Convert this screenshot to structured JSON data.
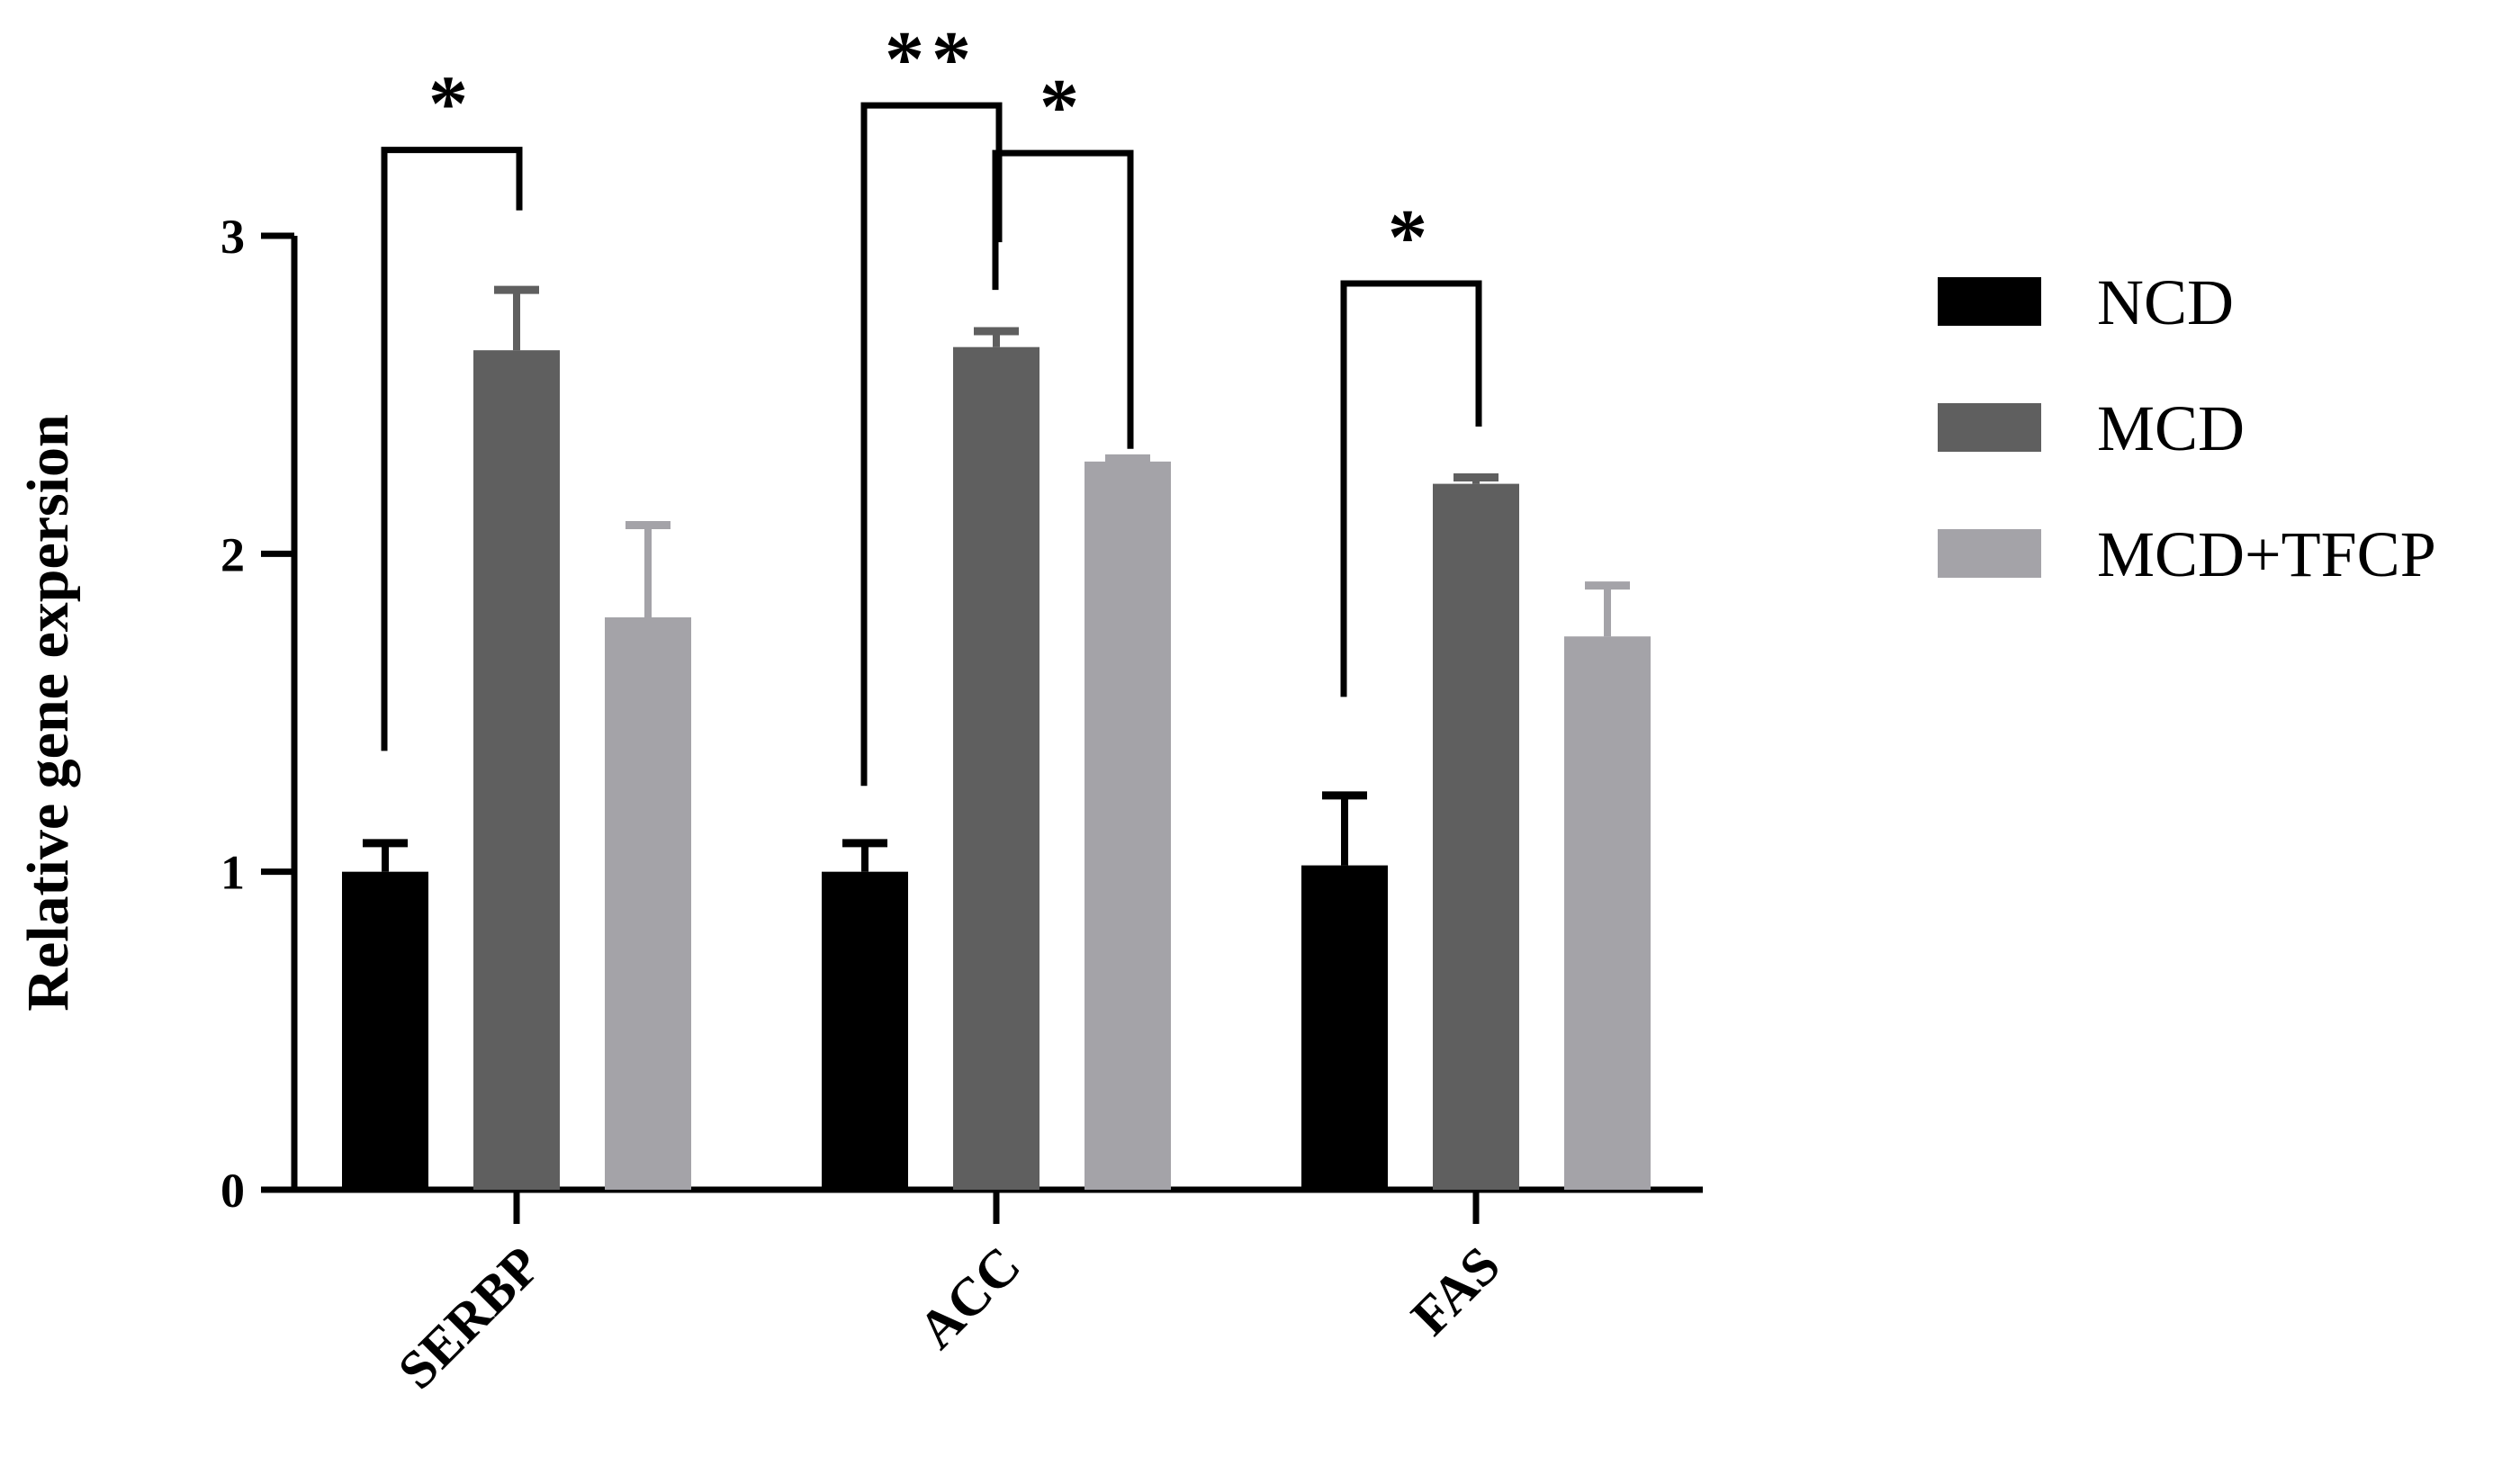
{
  "chart_data": {
    "type": "bar",
    "categories": [
      "SERBP",
      "ACC",
      "FAS"
    ],
    "series": [
      {
        "name": "NCD",
        "color": "#000000",
        "values": [
          1.0,
          1.0,
          1.02
        ],
        "errors": [
          0.09,
          0.09,
          0.22
        ]
      },
      {
        "name": "MCD",
        "color": "#5f5f5f",
        "values": [
          2.64,
          2.65,
          2.22
        ],
        "errors": [
          0.19,
          0.05,
          0.02
        ]
      },
      {
        "name": "MCD+TFCP",
        "color": "#a4a3a8",
        "values": [
          1.8,
          2.29,
          1.74
        ],
        "errors": [
          0.29,
          0.01,
          0.16
        ]
      }
    ],
    "ylabel": "Relative gene expersion",
    "ylim": [
      0,
      3
    ],
    "yticks": [
      0,
      1,
      2,
      3
    ],
    "grid": false,
    "legend_position": "right",
    "significance": [
      {
        "category": 0,
        "from_series": 0,
        "to_series": 1,
        "label": "*",
        "bracket_y": 3.27,
        "left_drop": 1.38,
        "right_drop": 3.08
      },
      {
        "category": 1,
        "from_series": 0,
        "to_series": 1,
        "label": "**",
        "bracket_y": 3.41,
        "left_drop": 1.27,
        "right_drop": 2.98
      },
      {
        "category": 1,
        "from_series": 1,
        "to_series": 2,
        "label": "*",
        "bracket_y": 3.26,
        "left_drop": 2.83,
        "right_drop": 2.33
      },
      {
        "category": 2,
        "from_series": 0,
        "to_series": 1,
        "label": "*",
        "bracket_y": 2.85,
        "left_drop": 1.55,
        "right_drop": 2.4
      }
    ]
  }
}
